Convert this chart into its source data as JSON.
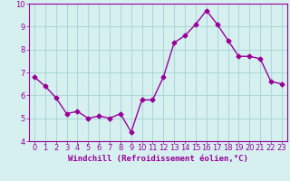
{
  "x": [
    0,
    1,
    2,
    3,
    4,
    5,
    6,
    7,
    8,
    9,
    10,
    11,
    12,
    13,
    14,
    15,
    16,
    17,
    18,
    19,
    20,
    21,
    22,
    23
  ],
  "y": [
    6.8,
    6.4,
    5.9,
    5.2,
    5.3,
    5.0,
    5.1,
    5.0,
    5.2,
    4.4,
    5.8,
    5.8,
    6.8,
    8.3,
    8.6,
    9.1,
    9.7,
    9.1,
    8.4,
    7.7,
    7.7,
    7.6,
    6.6,
    6.5
  ],
  "line_color": "#990099",
  "marker": "D",
  "marker_size": 2.5,
  "xlabel": "Windchill (Refroidissement éolien,°C)",
  "ylabel": "",
  "ylim": [
    4,
    10
  ],
  "xlim": [
    -0.5,
    23.5
  ],
  "yticks": [
    4,
    5,
    6,
    7,
    8,
    9,
    10
  ],
  "xticks": [
    0,
    1,
    2,
    3,
    4,
    5,
    6,
    7,
    8,
    9,
    10,
    11,
    12,
    13,
    14,
    15,
    16,
    17,
    18,
    19,
    20,
    21,
    22,
    23
  ],
  "background_color": "#d6f0f0",
  "grid_color": "#b0d8d8",
  "axis_color": "#990099",
  "tick_color": "#990099",
  "label_color": "#990099",
  "xlabel_fontsize": 6.5,
  "tick_fontsize": 6,
  "line_width": 1.0
}
